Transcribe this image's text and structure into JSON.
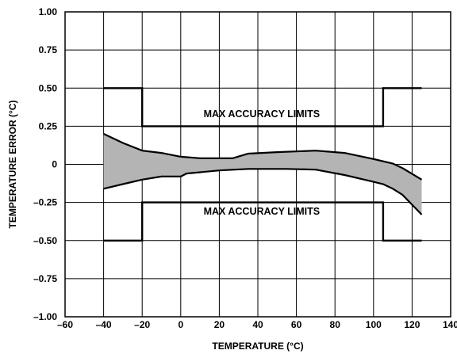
{
  "chart_data": {
    "type": "area",
    "title": "",
    "xlabel": "TEMPERATURE (°C)",
    "ylabel": "TEMPERATURE ERROR (°C)",
    "xlim": [
      -60,
      140
    ],
    "ylim": [
      -1.0,
      1.0
    ],
    "x_ticks": [
      -60,
      -40,
      -20,
      0,
      20,
      40,
      60,
      80,
      100,
      120,
      140
    ],
    "x_tick_labels": [
      "–60",
      "–40",
      "–20",
      "0",
      "20",
      "40",
      "60",
      "80",
      "100",
      "120",
      "140"
    ],
    "y_ticks": [
      1.0,
      0.75,
      0.5,
      0.25,
      0,
      -0.25,
      -0.5,
      -0.75,
      -1.0
    ],
    "y_tick_labels": [
      "1.00",
      "0.75",
      "0.50",
      "0.25",
      "0",
      "–0.25",
      "–0.50",
      "–0.75",
      "–1.00"
    ],
    "grid": true,
    "error_band": {
      "fill": "#b4b4b4",
      "upper": [
        [
          -40,
          0.2
        ],
        [
          -30,
          0.14
        ],
        [
          -20,
          0.09
        ],
        [
          -10,
          0.075
        ],
        [
          0,
          0.05
        ],
        [
          10,
          0.04
        ],
        [
          20,
          0.04
        ],
        [
          27,
          0.04
        ],
        [
          35,
          0.07
        ],
        [
          50,
          0.08
        ],
        [
          70,
          0.09
        ],
        [
          85,
          0.075
        ],
        [
          100,
          0.035
        ],
        [
          110,
          0.005
        ],
        [
          115,
          -0.025
        ],
        [
          125,
          -0.1
        ]
      ],
      "lower": [
        [
          -40,
          -0.16
        ],
        [
          -30,
          -0.13
        ],
        [
          -20,
          -0.1
        ],
        [
          -10,
          -0.08
        ],
        [
          0,
          -0.08
        ],
        [
          3,
          -0.06
        ],
        [
          20,
          -0.04
        ],
        [
          35,
          -0.03
        ],
        [
          55,
          -0.03
        ],
        [
          70,
          -0.035
        ],
        [
          85,
          -0.07
        ],
        [
          100,
          -0.115
        ],
        [
          105,
          -0.13
        ],
        [
          110,
          -0.16
        ],
        [
          115,
          -0.2
        ],
        [
          125,
          -0.33
        ]
      ]
    },
    "limits": {
      "upper": [
        [
          -40,
          0.5
        ],
        [
          -20,
          0.5
        ],
        [
          -20,
          0.25
        ],
        [
          105,
          0.25
        ],
        [
          105,
          0.5
        ],
        [
          125,
          0.5
        ]
      ],
      "lower": [
        [
          -40,
          -0.5
        ],
        [
          -20,
          -0.5
        ],
        [
          -20,
          -0.25
        ],
        [
          105,
          -0.25
        ],
        [
          105,
          -0.5
        ],
        [
          125,
          -0.5
        ]
      ]
    },
    "annotations": [
      {
        "text": "MAX ACCURACY LIMITS",
        "x": 42,
        "y": 0.31
      },
      {
        "text": "MAX ACCURACY LIMITS",
        "x": 42,
        "y": -0.33
      }
    ]
  }
}
